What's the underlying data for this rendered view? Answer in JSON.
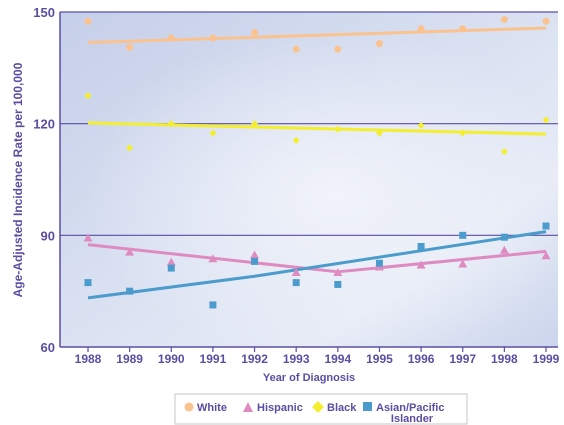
{
  "chart_data": {
    "type": "scatter",
    "xlabel": "Year of Diagnosis",
    "ylabel": "Age-Adjusted Incidence Rate per 100,000",
    "x": [
      1988,
      1989,
      1990,
      1991,
      1992,
      1993,
      1994,
      1995,
      1996,
      1997,
      1998,
      1999
    ],
    "xlim": [
      1988,
      1999
    ],
    "ylim": [
      60,
      150
    ],
    "y_ticks": [
      60,
      90,
      120,
      150
    ],
    "grid": "horizontal",
    "legend_position": "bottom",
    "series": [
      {
        "name": "White",
        "marker": "circle",
        "color": "#FAC28E",
        "values": [
          147.5,
          140.5,
          143,
          143,
          144.5,
          140,
          140,
          141.5,
          145.5,
          145.5,
          148,
          147.5
        ],
        "trend": [
          141.8,
          145.7
        ]
      },
      {
        "name": "Hispanic",
        "marker": "triangle",
        "color": "#DE8BC2",
        "values": [
          89.3,
          85.5,
          82.8,
          83.7,
          84.7,
          80,
          80,
          81.5,
          82,
          82.3,
          86,
          84.5
        ],
        "trend_points": [
          [
            1988,
            87.5
          ],
          [
            1994,
            80.2
          ],
          [
            1999,
            85.7
          ]
        ]
      },
      {
        "name": "Black",
        "marker": "diamond",
        "color": "#F4EF2E",
        "values": [
          127.5,
          113.5,
          120,
          117.5,
          120,
          115.5,
          118.5,
          117.5,
          119.5,
          117.5,
          112.5,
          121
        ],
        "trend": [
          120.2,
          117.2
        ]
      },
      {
        "name": "Asian/Pacific Islander",
        "marker": "square",
        "color": "#4B9CCC",
        "values": [
          77.3,
          75,
          81.2,
          71.3,
          83,
          77.3,
          76.8,
          82.5,
          87,
          90,
          89.5,
          92.5
        ],
        "trend_points": [
          [
            1988,
            73.2
          ],
          [
            1992,
            79
          ],
          [
            1999,
            91
          ]
        ]
      }
    ]
  },
  "legend": {
    "white": "White",
    "hispanic": "Hispanic",
    "black": "Black",
    "asian_line1": "Asian/Pacific",
    "asian_line2": "Islander"
  },
  "colors": {
    "axis_text": "#5C4DA3",
    "grid": "#5C4DA3",
    "plot_bg": "#CCD6EC"
  }
}
